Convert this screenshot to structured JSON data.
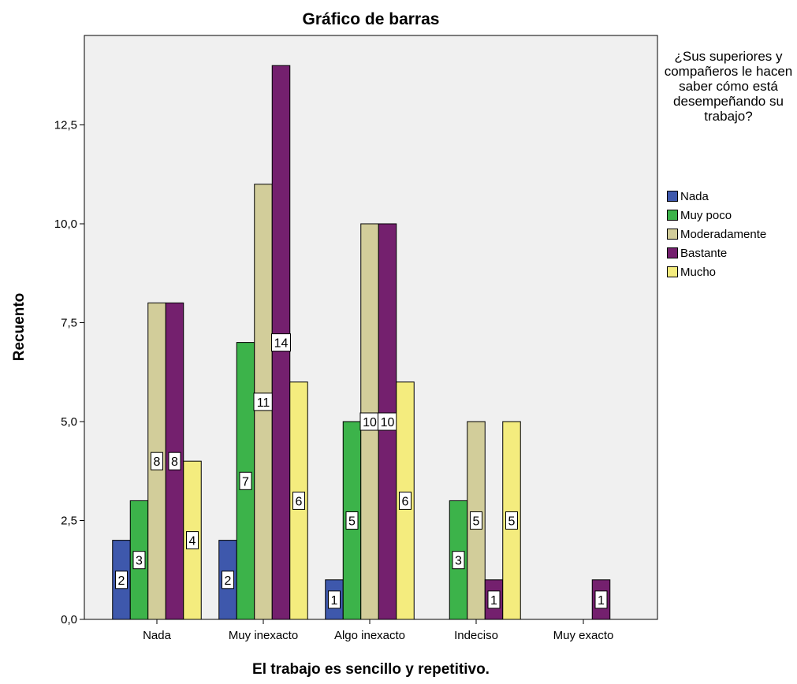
{
  "chart_data": {
    "type": "bar",
    "title": "Gráfico de barras",
    "xlabel": "El trabajo es sencillo y repetitivo.",
    "ylabel": "Recuento",
    "categories": [
      "Nada",
      "Muy inexacto",
      "Algo inexacto",
      "Indeciso",
      "Muy exacto"
    ],
    "ylim": [
      0,
      14.9
    ],
    "yticks": [
      0.0,
      2.5,
      5.0,
      7.5,
      10.0,
      12.5
    ],
    "ytick_labels": [
      "0,0",
      "2,5",
      "5,0",
      "7,5",
      "10,0",
      "12,5"
    ],
    "grid": false,
    "legend_title": "¿Sus superiores y compañeros le hacen saber cómo está desempeñando su trabajo?",
    "legend_position": "right",
    "series": [
      {
        "name": "Nada",
        "color": "#3e58ac",
        "values": [
          2,
          2,
          1,
          null,
          null
        ]
      },
      {
        "name": "Muy poco",
        "color": "#3cb34a",
        "values": [
          3,
          7,
          5,
          3,
          null
        ]
      },
      {
        "name": "Moderadamente",
        "color": "#d2cd9a",
        "values": [
          8,
          11,
          10,
          5,
          null
        ]
      },
      {
        "name": "Bastante",
        "color": "#74206e",
        "values": [
          8,
          14,
          10,
          1,
          1
        ]
      },
      {
        "name": "Mucho",
        "color": "#f4ec7e",
        "values": [
          4,
          6,
          6,
          5,
          null
        ]
      }
    ],
    "plot_background": "#f0f0f0"
  }
}
